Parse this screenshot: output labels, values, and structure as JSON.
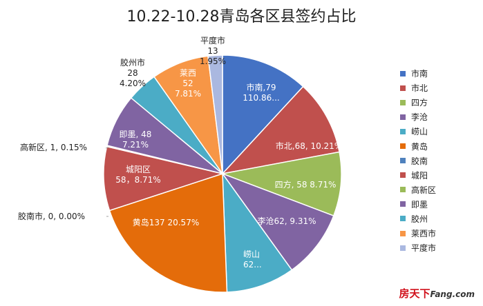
{
  "chart_data": {
    "type": "pie",
    "title": "10.22-10.28青岛各区县签约占比",
    "start_category": "市南",
    "direction": "clockwise",
    "slices": [
      {
        "name": "市南",
        "value": 79,
        "label": "市南,79\n110.86...",
        "color": "#4472c4"
      },
      {
        "name": "市北",
        "value": 68,
        "label": "市北,68, 10.21%",
        "color": "#c0504d"
      },
      {
        "name": "四方",
        "value": 58,
        "label": "四方, 58 8.71%",
        "color": "#9bbb59"
      },
      {
        "name": "李沧",
        "value": 62,
        "label": "李沧62, 9.31%",
        "color": "#8064a2"
      },
      {
        "name": "崂山",
        "value": 62,
        "label": "崂山\n62...",
        "color": "#4bacc6"
      },
      {
        "name": "黄岛",
        "value": 137,
        "label": "黄岛137 20.57%",
        "color": "#e46c0a"
      },
      {
        "name": "胶南",
        "value": 0,
        "label": "胶南市, 0, 0.00%",
        "color": "#4f81bd"
      },
      {
        "name": "城阳",
        "value": 58,
        "label": "城阳区\n58，8.71%",
        "color": "#c0504d"
      },
      {
        "name": "高新区",
        "value": 1,
        "label": "高新区, 1, 0.15%",
        "color": "#9bbb59"
      },
      {
        "name": "即墨",
        "value": 48,
        "label": "即墨, 48\n7.21%",
        "color": "#8064a2"
      },
      {
        "name": "胶州",
        "value": 28,
        "label": "胶州市\n28\n4.20%",
        "color": "#4bacc6"
      },
      {
        "name": "莱西市",
        "value": 52,
        "label": "莱西\n52\n7.81%",
        "color": "#f79646"
      },
      {
        "name": "平度市",
        "value": 13,
        "label": "平度市\n13\n1.95%",
        "color": "#aab8e0"
      }
    ],
    "legend_position": "right"
  },
  "watermark": {
    "brand": "房天下",
    "en": "Fang.com"
  }
}
